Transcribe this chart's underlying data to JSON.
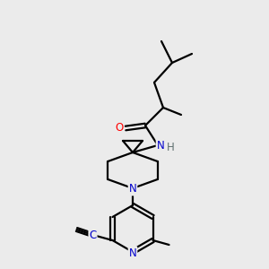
{
  "background_color": "#ebebeb",
  "bond_color": "#000000",
  "atom_colors": {
    "N": "#0000cc",
    "O": "#ff0000",
    "C": "#000000",
    "H": "#607070"
  },
  "figsize": [
    3.0,
    3.0
  ],
  "dpi": 100,
  "bond_lw": 1.6
}
